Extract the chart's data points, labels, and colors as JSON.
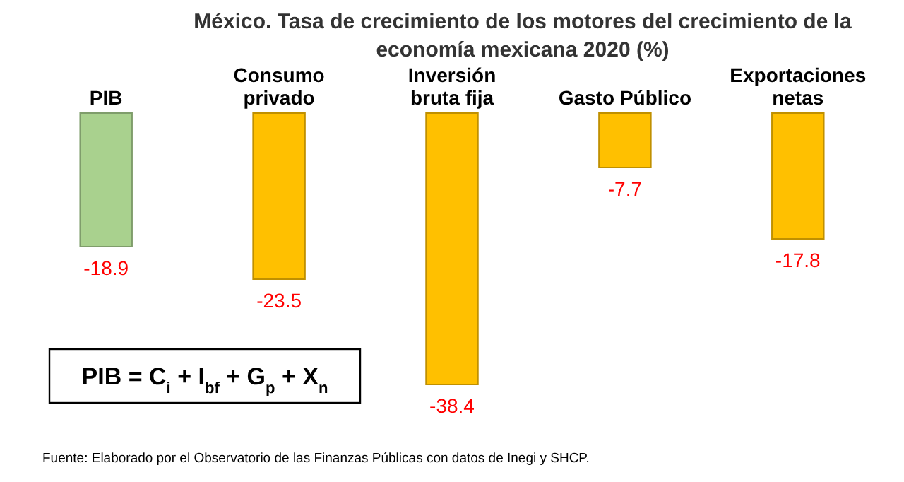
{
  "chart_data": {
    "type": "bar",
    "title": "México. Tasa de crecimiento de los motores del crecimiento de la economía mexicana 2020 (%)",
    "categories": [
      "PIB",
      "Consumo privado",
      "Inversión bruta fija",
      "Gasto Público",
      "Exportaciones netas"
    ],
    "values": [
      -18.9,
      -23.5,
      -38.4,
      -7.7,
      -17.8
    ],
    "colors": [
      "#a9d18e",
      "#ffc000",
      "#ffc000",
      "#ffc000",
      "#ffc000"
    ],
    "data_labels": true,
    "annotations": [
      "PIB = C$_{i}$ + I$_{bf}$ + G$_{p}$ + X$_{n}$",
      "Fuente: Elaborado por el Observatorio de las Finanzas Públicas con datos de Inegi y SHCP."
    ]
  }
}
